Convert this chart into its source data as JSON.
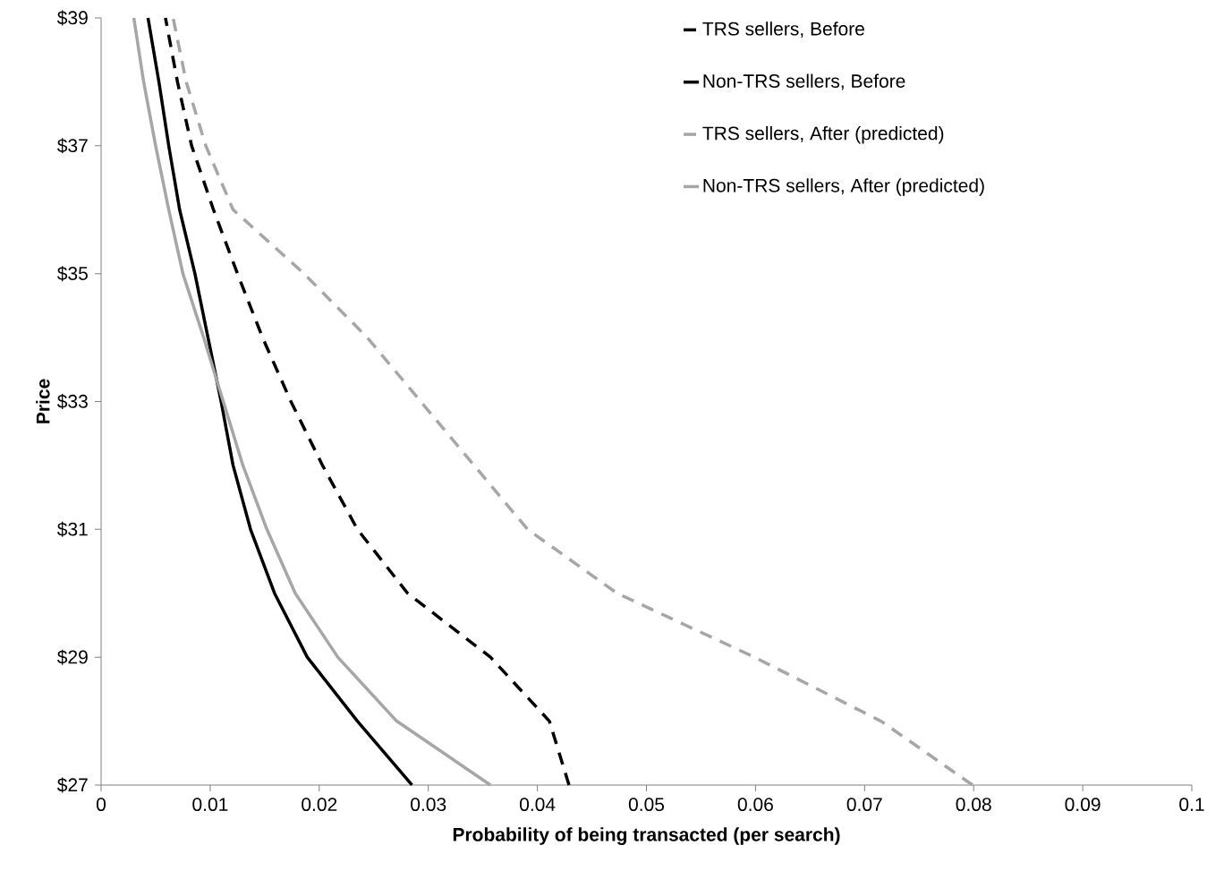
{
  "chart_data": {
    "type": "line",
    "xlabel": "Probability of being transacted (per search)",
    "ylabel": "Price",
    "xlim": [
      0,
      0.1
    ],
    "xticks": [
      0,
      0.01,
      0.02,
      0.03,
      0.04,
      0.05,
      0.06,
      0.07,
      0.08,
      0.09,
      0.1
    ],
    "ylim": [
      27,
      39
    ],
    "yticks": [
      {
        "value": 27,
        "label": "$27"
      },
      {
        "value": 29,
        "label": "$29"
      },
      {
        "value": 31,
        "label": "$31"
      },
      {
        "value": 33,
        "label": "$33"
      },
      {
        "value": 35,
        "label": "$35"
      },
      {
        "value": 37,
        "label": "$37"
      },
      {
        "value": 39,
        "label": "$39"
      }
    ],
    "grid": false,
    "legend": "top right",
    "marker": "none",
    "series": [
      {
        "name": "TRS sellers, Before",
        "color": "#000000",
        "line_style": "dashed",
        "x": [
          0.0429,
          0.0411,
          0.0357,
          0.0281,
          0.0235,
          0.0203,
          0.0174,
          0.0148,
          0.0125,
          0.0103,
          0.0083,
          0.007,
          0.0059
        ],
        "values": [
          27,
          28,
          29,
          30,
          31,
          32,
          33,
          34,
          35,
          36,
          37,
          38,
          39
        ]
      },
      {
        "name": "Non-TRS sellers, Before",
        "color": "#000000",
        "line_style": "solid",
        "x": [
          0.0285,
          0.0235,
          0.0189,
          0.0159,
          0.0137,
          0.0121,
          0.011,
          0.0098,
          0.0086,
          0.0072,
          0.0062,
          0.0053,
          0.0043
        ],
        "values": [
          27,
          28,
          29,
          30,
          31,
          32,
          33,
          34,
          35,
          36,
          37,
          38,
          39
        ]
      },
      {
        "name": "TRS sellers, After (predicted)",
        "color": "#a6a6a6",
        "line_style": "dashed",
        "x": [
          0.0799,
          0.0715,
          0.0599,
          0.0473,
          0.0391,
          0.0342,
          0.0293,
          0.0244,
          0.0186,
          0.0121,
          0.0096,
          0.0078,
          0.0066
        ],
        "values": [
          27,
          28,
          29,
          30,
          31,
          32,
          33,
          34,
          35,
          36,
          37,
          38,
          39
        ]
      },
      {
        "name": "Non-TRS sellers, After (predicted)",
        "color": "#a6a6a6",
        "line_style": "solid",
        "x": [
          0.0357,
          0.0271,
          0.0217,
          0.0178,
          0.0152,
          0.013,
          0.0112,
          0.0094,
          0.0075,
          0.0062,
          0.005,
          0.0039,
          0.003
        ],
        "values": [
          27,
          28,
          29,
          30,
          31,
          32,
          33,
          34,
          35,
          36,
          37,
          38,
          39
        ]
      }
    ]
  }
}
